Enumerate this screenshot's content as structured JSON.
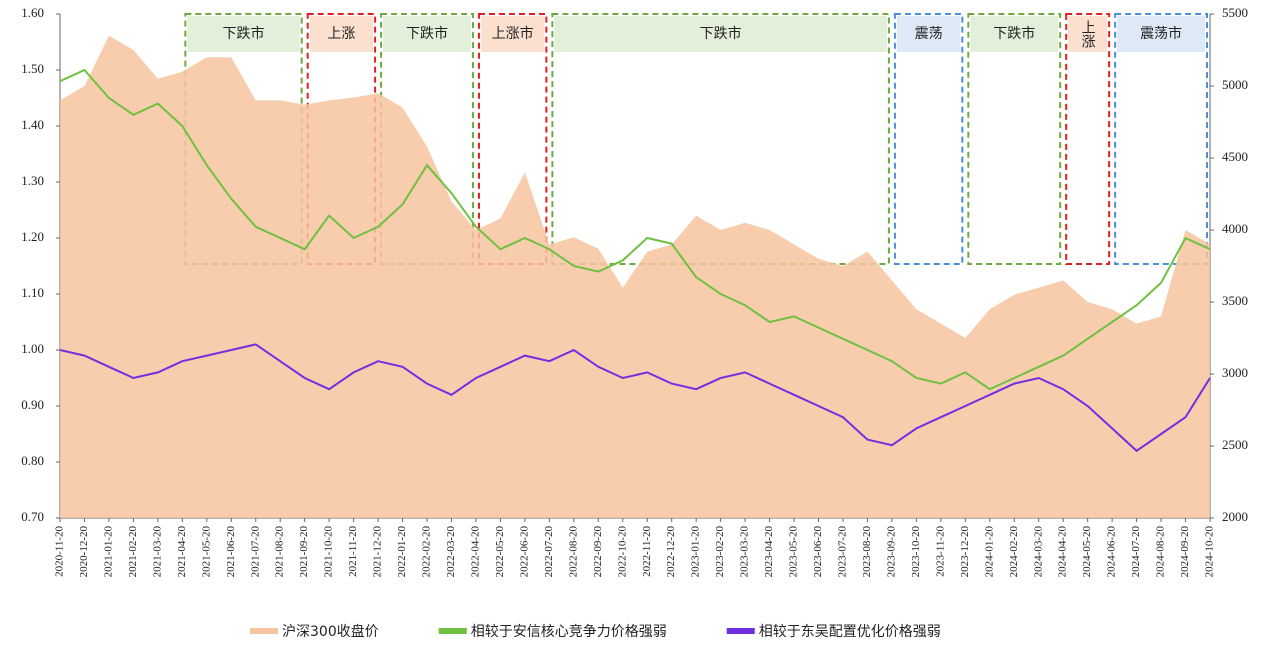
{
  "chart_data": {
    "type": "line",
    "x": [
      "2020-11-20",
      "2020-12-20",
      "2021-01-20",
      "2021-02-20",
      "2021-03-20",
      "2021-04-20",
      "2021-05-20",
      "2021-06-20",
      "2021-07-20",
      "2021-08-20",
      "2021-09-20",
      "2021-10-20",
      "2021-11-20",
      "2021-12-20",
      "2022-01-20",
      "2022-02-20",
      "2022-03-20",
      "2022-04-20",
      "2022-05-20",
      "2022-06-20",
      "2022-07-20",
      "2022-08-20",
      "2022-09-20",
      "2022-10-20",
      "2022-11-20",
      "2022-12-20",
      "2023-01-20",
      "2023-02-20",
      "2023-03-20",
      "2023-04-20",
      "2023-05-20",
      "2023-06-20",
      "2023-07-20",
      "2023-08-20",
      "2023-09-20",
      "2023-10-20",
      "2023-11-20",
      "2023-12-20",
      "2024-01-20",
      "2024-02-20",
      "2024-03-20",
      "2024-04-20",
      "2024-05-20",
      "2024-06-20",
      "2024-07-20",
      "2024-08-20",
      "2024-09-20",
      "2024-10-20"
    ],
    "series": [
      {
        "name": "沪深300收盘价",
        "color": "#f7c4a0",
        "axis": "y2",
        "style": "area",
        "values": [
          4900,
          5000,
          5350,
          5250,
          5050,
          5100,
          5200,
          5200,
          4900,
          4900,
          4870,
          4900,
          4920,
          4950,
          4850,
          4580,
          4200,
          4000,
          4080,
          4400,
          3900,
          3950,
          3870,
          3600,
          3850,
          3900,
          4100,
          4000,
          4050,
          4000,
          3900,
          3800,
          3750,
          3850,
          3650,
          3450,
          3350,
          3250,
          3450,
          3550,
          3600,
          3650,
          3500,
          3450,
          3350,
          3400,
          4000,
          3900
        ]
      },
      {
        "name": "相较于安信核心竞争力价格强弱",
        "color": "#70c040",
        "style": "line",
        "values": [
          1.48,
          1.5,
          1.45,
          1.42,
          1.44,
          1.4,
          1.33,
          1.27,
          1.22,
          1.2,
          1.18,
          1.24,
          1.2,
          1.22,
          1.26,
          1.33,
          1.28,
          1.22,
          1.18,
          1.2,
          1.18,
          1.15,
          1.14,
          1.16,
          1.2,
          1.19,
          1.13,
          1.1,
          1.08,
          1.05,
          1.06,
          1.04,
          1.02,
          1.0,
          0.98,
          0.95,
          0.94,
          0.96,
          0.93,
          0.95,
          0.97,
          0.99,
          1.02,
          1.05,
          1.08,
          1.12,
          1.2,
          1.18
        ]
      },
      {
        "name": "相较于东吴配置优化价格强弱",
        "color": "#7030e0",
        "style": "line",
        "values": [
          1.0,
          0.99,
          0.97,
          0.95,
          0.96,
          0.98,
          0.99,
          1.0,
          1.01,
          0.98,
          0.95,
          0.93,
          0.96,
          0.98,
          0.97,
          0.94,
          0.92,
          0.95,
          0.97,
          0.99,
          0.98,
          1.0,
          0.97,
          0.95,
          0.96,
          0.94,
          0.93,
          0.95,
          0.96,
          0.94,
          0.92,
          0.9,
          0.88,
          0.84,
          0.83,
          0.86,
          0.88,
          0.9,
          0.92,
          0.94,
          0.95,
          0.93,
          0.9,
          0.86,
          0.82,
          0.85,
          0.88,
          0.95
        ]
      }
    ],
    "ylim": [
      0.7,
      1.6
    ],
    "yticks": [
      {
        "value": 0.7,
        "label": "0.70"
      },
      {
        "value": 0.8,
        "label": "0.80"
      },
      {
        "value": 0.9,
        "label": "0.90"
      },
      {
        "value": 1.0,
        "label": "1.00"
      },
      {
        "value": 1.1,
        "label": "1.10"
      },
      {
        "value": 1.2,
        "label": "1.20"
      },
      {
        "value": 1.3,
        "label": "1.30"
      },
      {
        "value": 1.4,
        "label": "1.40"
      },
      {
        "value": 1.5,
        "label": "1.50"
      },
      {
        "value": 1.6,
        "label": "1.60"
      }
    ],
    "y2lim": [
      2000,
      5500
    ],
    "y2ticks": [
      2000,
      2500,
      3000,
      3500,
      4000,
      4500,
      5000,
      5500
    ],
    "legend": "bottom",
    "regimes": [
      {
        "label": "下跌市",
        "start": "2021-04-20",
        "end": "2021-09-20",
        "color": "#70a840",
        "fill": "#e2efda"
      },
      {
        "label": "上涨",
        "start": "2021-09-20",
        "end": "2021-12-20",
        "color": "#e02020",
        "fill": "#fbe0d0"
      },
      {
        "label": "下跌市",
        "start": "2021-12-20",
        "end": "2022-04-20",
        "color": "#70a840",
        "fill": "#e2efda"
      },
      {
        "label": "上涨市",
        "start": "2022-04-20",
        "end": "2022-07-20",
        "color": "#e02020",
        "fill": "#fbe0d0"
      },
      {
        "label": "下跌市",
        "start": "2022-07-20",
        "end": "2023-09-20",
        "color": "#70a840",
        "fill": "#e2efda"
      },
      {
        "label": "震荡",
        "start": "2023-09-20",
        "end": "2023-12-20",
        "color": "#4a90d8",
        "fill": "#dde9f6"
      },
      {
        "label": "下跌市",
        "start": "2023-12-20",
        "end": "2024-04-20",
        "color": "#70a840",
        "fill": "#e2efda"
      },
      {
        "label": "上涨",
        "start": "2024-04-20",
        "end": "2024-06-20",
        "color": "#e02020",
        "fill": "#fbe0d0"
      },
      {
        "label": "震荡市",
        "start": "2024-06-20",
        "end": "2024-10-20",
        "color": "#4a90d8",
        "fill": "#dde9f6"
      }
    ]
  }
}
